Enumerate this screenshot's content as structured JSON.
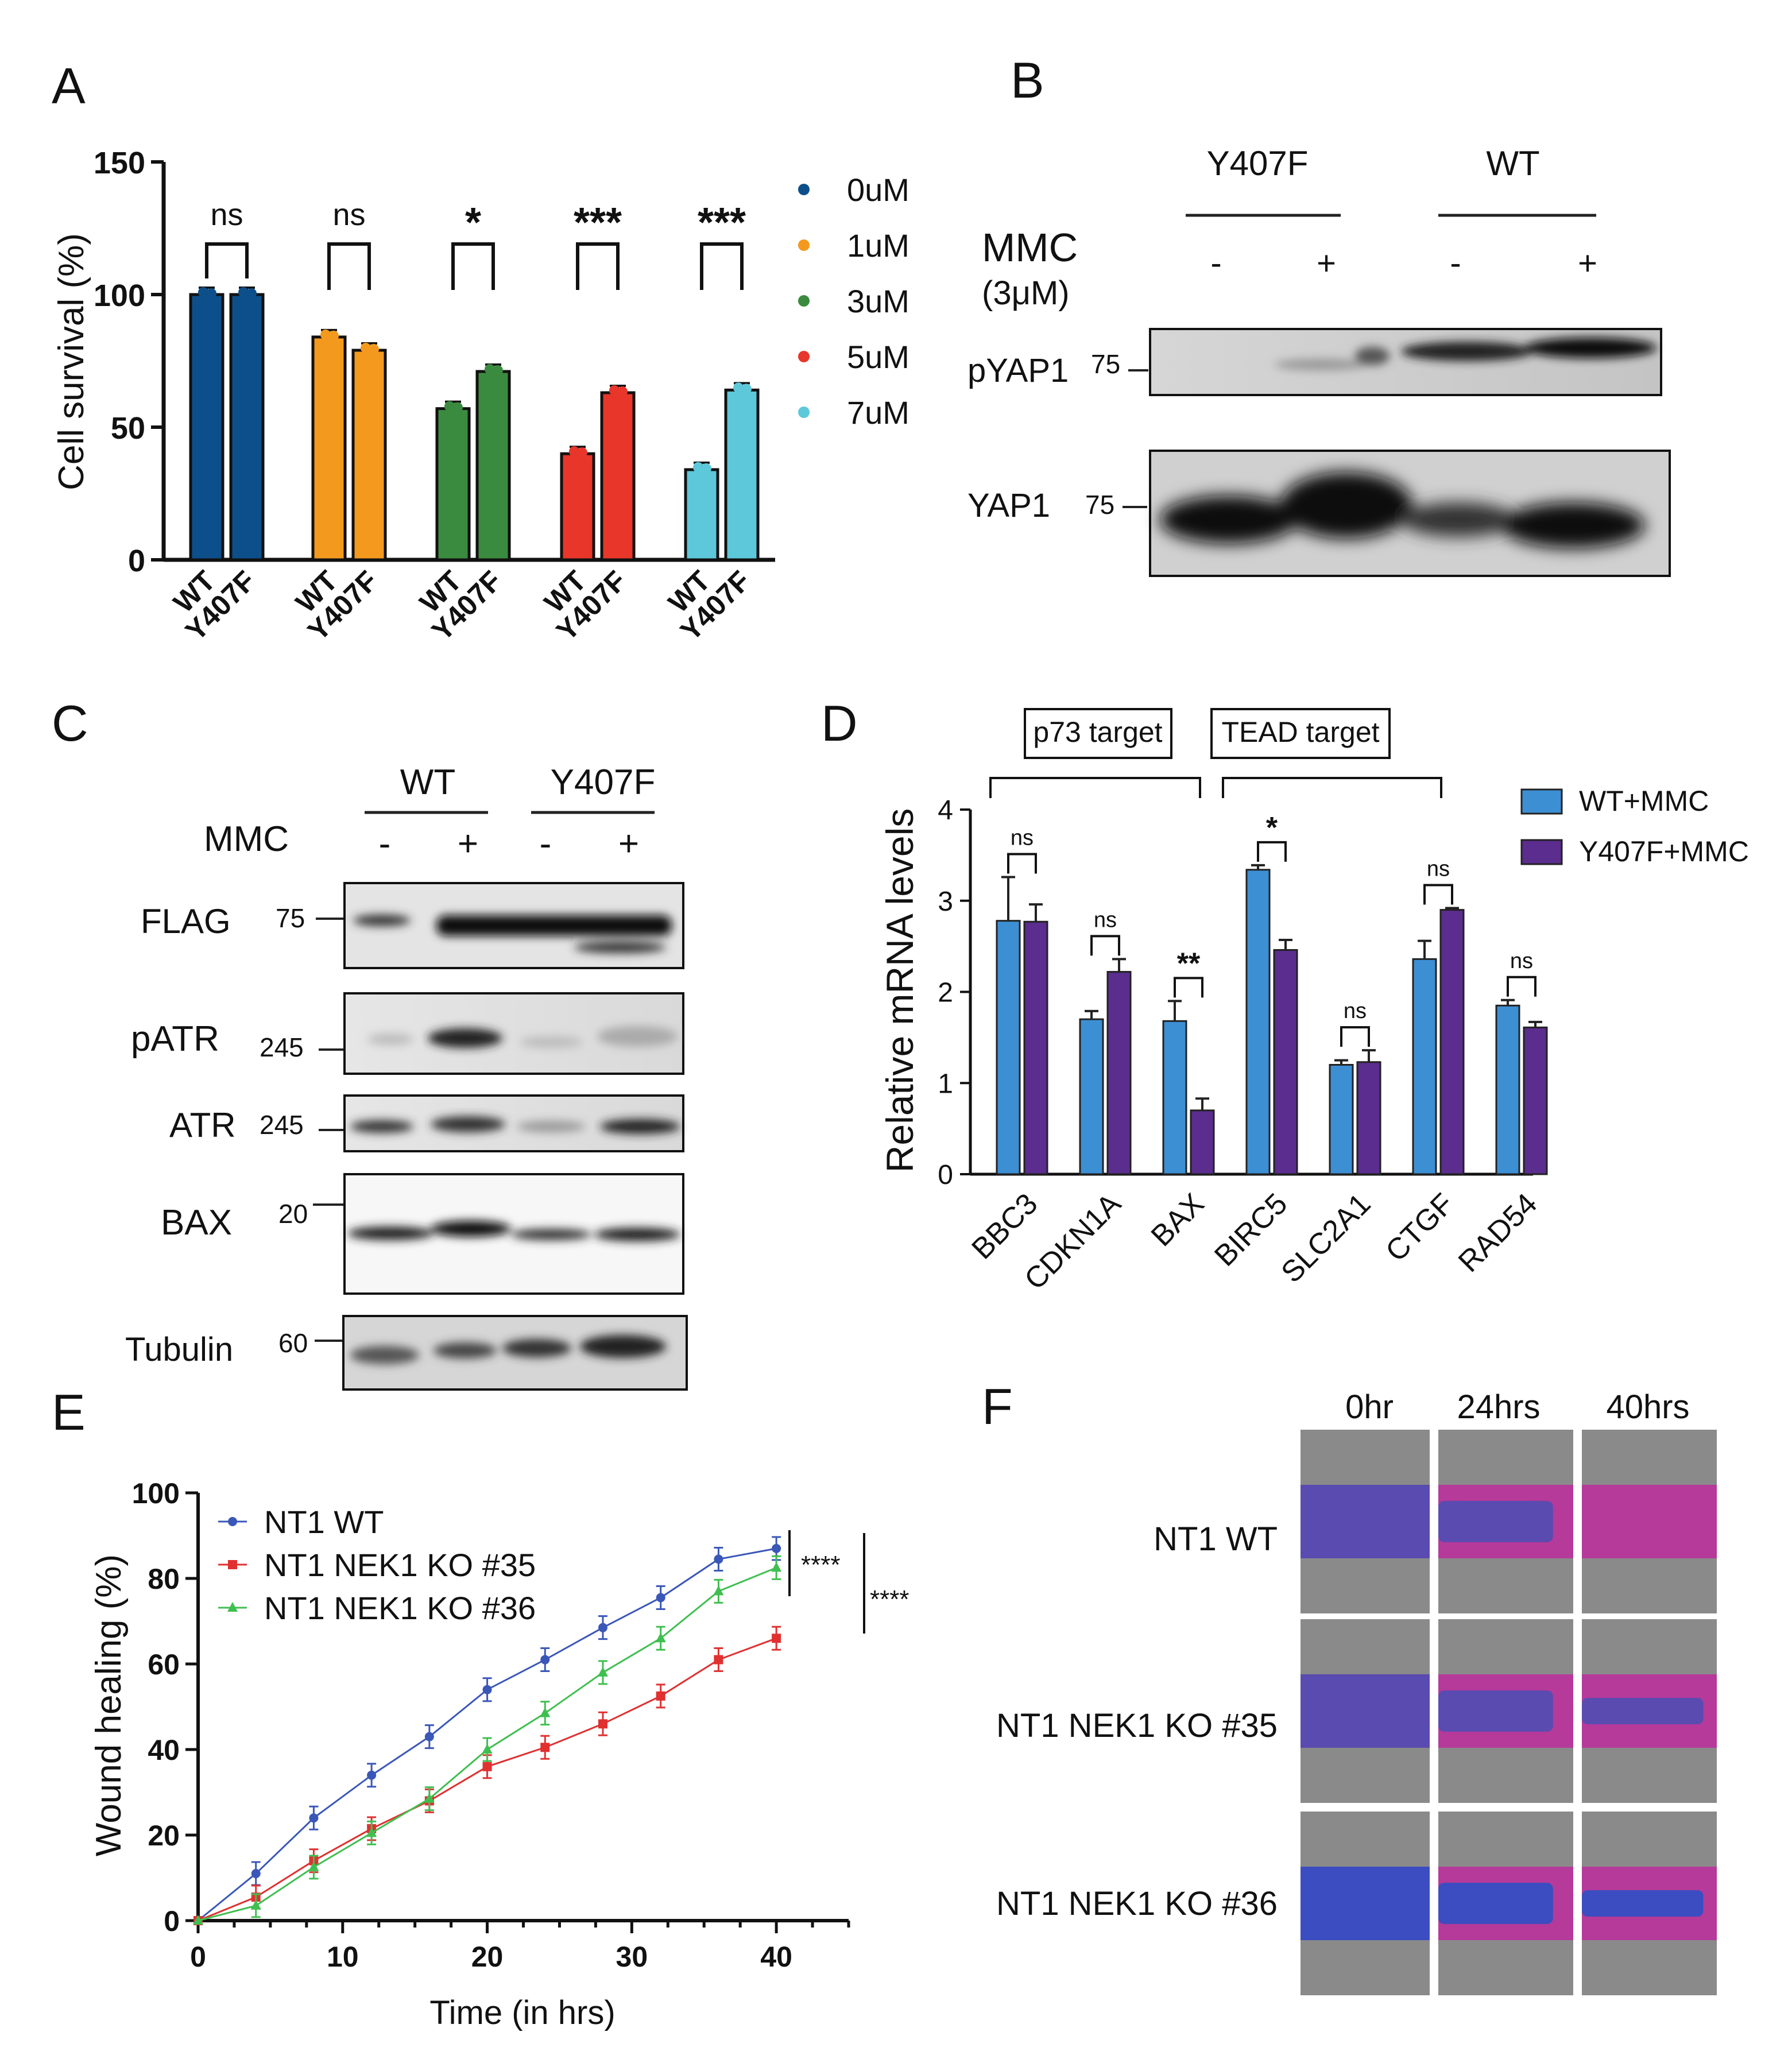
{
  "panels": {
    "A": "A",
    "B": "B",
    "C": "C",
    "D": "D",
    "E": "E",
    "F": "F"
  },
  "chart_data": [
    {
      "panel": "A",
      "type": "bar",
      "ylabel": "Cell survival (%)",
      "ylim": [
        0,
        150
      ],
      "yticks": [
        "0",
        "50",
        "100",
        "150"
      ],
      "groups": [
        {
          "dose": "0uM",
          "color": "#0d4f8b",
          "values": [
            100,
            100
          ],
          "sig": "ns"
        },
        {
          "dose": "1uM",
          "color": "#f39a1e",
          "values": [
            84,
            79
          ],
          "sig": "ns"
        },
        {
          "dose": "3uM",
          "color": "#3a8b3f",
          "values": [
            57,
            71
          ],
          "sig": "*"
        },
        {
          "dose": "5uM",
          "color": "#e8362a",
          "values": [
            40,
            63
          ],
          "sig": "***"
        },
        {
          "dose": "7uM",
          "color": "#5cc8d9",
          "values": [
            34,
            64
          ],
          "sig": "***"
        }
      ],
      "bar_labels": [
        "WT",
        "Y407F"
      ],
      "legend": [
        "0uM",
        "1uM",
        "3uM",
        "5uM",
        "7uM"
      ]
    },
    {
      "panel": "D",
      "type": "bar",
      "ylabel": "Relative mRNA levels",
      "ylim": [
        0,
        4
      ],
      "yticks": [
        "0",
        "1",
        "2",
        "3",
        "4"
      ],
      "categories": [
        "BBC3",
        "CDKN1A",
        "BAX",
        "BIRC5",
        "SLC2A1",
        "CTGF",
        "RAD54"
      ],
      "series": [
        {
          "name": "WT+MMC",
          "color": "#3d8fd4",
          "values": [
            2.78,
            1.7,
            1.68,
            3.34,
            1.2,
            2.36,
            1.85
          ],
          "err": [
            0.48,
            0.09,
            0.22,
            0.05,
            0.05,
            0.2,
            0.06
          ]
        },
        {
          "name": "Y407F+MMC",
          "color": "#5b2d8e",
          "values": [
            2.77,
            2.22,
            0.7,
            2.46,
            1.23,
            2.9,
            1.61
          ],
          "err": [
            0.19,
            0.14,
            0.13,
            0.11,
            0.13,
            0.02,
            0.06
          ]
        }
      ],
      "sig": [
        "ns",
        "ns",
        "**",
        "*",
        "ns",
        "ns",
        "ns"
      ],
      "group_labels": [
        "p73 target",
        "TEAD target"
      ]
    },
    {
      "panel": "E",
      "type": "line",
      "xlabel": "Time (in hrs)",
      "ylabel": "Wound healing (%)",
      "xlim": [
        0,
        45
      ],
      "ylim": [
        0,
        100
      ],
      "xticks": [
        "0",
        "10",
        "20",
        "30",
        "40"
      ],
      "yticks": [
        "0",
        "20",
        "40",
        "60",
        "80",
        "100"
      ],
      "x": [
        0,
        4,
        8,
        12,
        16,
        20,
        24,
        28,
        32,
        36,
        40
      ],
      "series": [
        {
          "name": "NT1 WT",
          "color": "#3a57b8",
          "values": [
            0,
            11,
            24,
            34,
            43,
            54,
            61,
            68.5,
            75.5,
            84.5,
            87
          ]
        },
        {
          "name": "NT1 NEK1 KO #35",
          "color": "#e03030",
          "values": [
            0,
            5.5,
            14,
            21.5,
            28,
            36,
            40.5,
            46,
            52.5,
            61,
            66
          ]
        },
        {
          "name": "NT1 NEK1 KO #36",
          "color": "#3fbf50",
          "values": [
            0,
            3.5,
            12.5,
            20.5,
            28.5,
            40,
            48.5,
            58,
            66,
            77,
            82.5
          ]
        }
      ],
      "sig": [
        "****",
        "****"
      ]
    }
  ],
  "blotB": {
    "groups": [
      "Y407F",
      "WT"
    ],
    "treatment": "MMC",
    "dose": "(3μM)",
    "signs": [
      "-",
      "+",
      "-",
      "+"
    ],
    "rows": [
      {
        "label": "pYAP1",
        "mw": "75"
      },
      {
        "label": "YAP1",
        "mw": "75"
      }
    ]
  },
  "blotC": {
    "groups": [
      "WT",
      "Y407F"
    ],
    "treatment": "MMC",
    "signs": [
      "-",
      "+",
      "-",
      "+"
    ],
    "rows": [
      {
        "label": "FLAG",
        "mw": "75"
      },
      {
        "label": "pATR",
        "mw": "245"
      },
      {
        "label": "ATR",
        "mw": "245"
      },
      {
        "label": "BAX",
        "mw": "20"
      },
      {
        "label": "Tubulin",
        "mw": "60"
      }
    ]
  },
  "panelF": {
    "cols": [
      "0hr",
      "24hrs",
      "40hrs"
    ],
    "rows": [
      "NT1 WT",
      "NT1 NEK1 KO #35",
      "NT1 NEK1 KO #36"
    ]
  }
}
